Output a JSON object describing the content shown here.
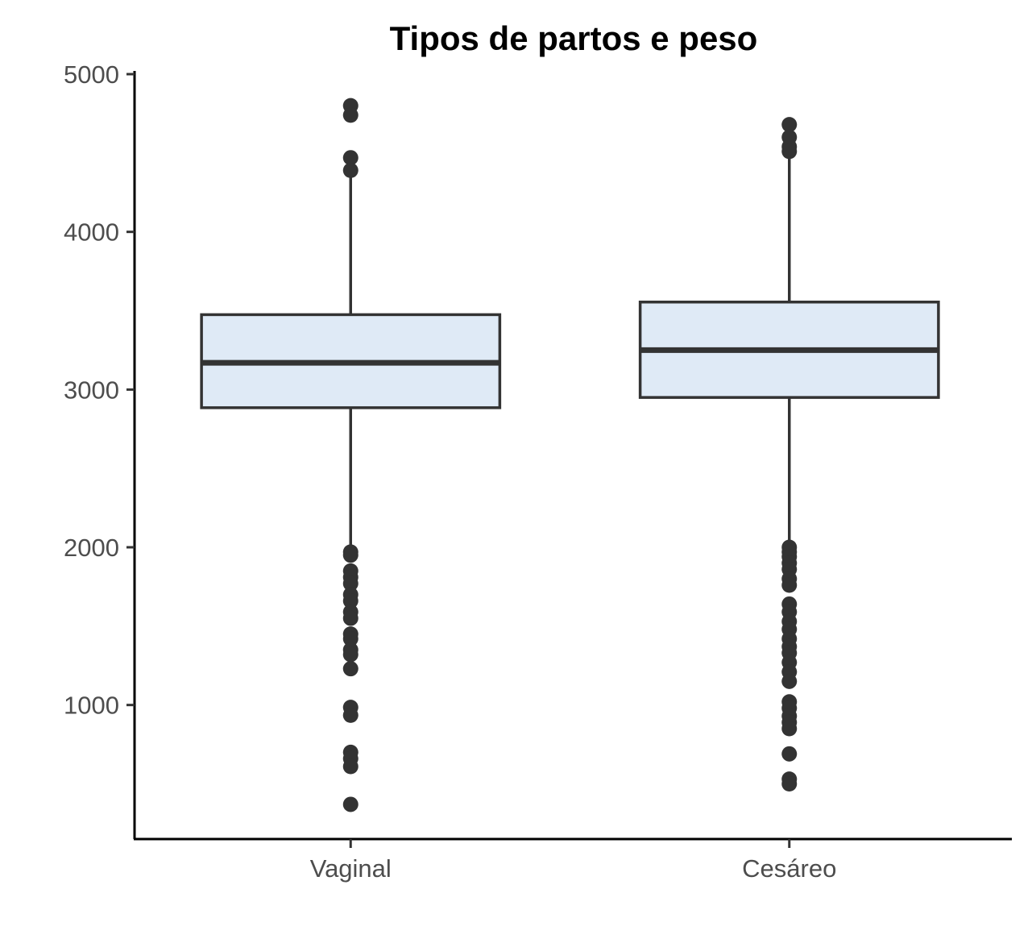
{
  "chart_data": {
    "type": "boxplot",
    "title": "Tipos de partos e peso",
    "xlabel": "",
    "ylabel": "",
    "categories": [
      "Vaginal",
      "Cesáreo"
    ],
    "ylim": [
      150,
      5000
    ],
    "yticks": [
      1000,
      2000,
      3000,
      4000,
      5000
    ],
    "grid": false,
    "box_fill": "#dfeaf6",
    "line_color": "#333333",
    "boxes": [
      {
        "name": "Vaginal",
        "whisker_low": 2000,
        "q1": 2885,
        "median": 3170,
        "q3": 3475,
        "whisker_high": 4390,
        "outliers": [
          4800,
          4740,
          4470,
          4390,
          1970,
          1950,
          1850,
          1810,
          1770,
          1700,
          1660,
          1590,
          1550,
          1450,
          1420,
          1350,
          1320,
          1230,
          985,
          935,
          700,
          660,
          610,
          370
        ]
      },
      {
        "name": "Cesáreo",
        "whisker_low": 2020,
        "q1": 2950,
        "median": 3250,
        "q3": 3555,
        "whisker_high": 4490,
        "outliers": [
          4680,
          4600,
          4540,
          4510,
          2000,
          1970,
          1940,
          1900,
          1860,
          1800,
          1760,
          1640,
          1590,
          1530,
          1480,
          1420,
          1370,
          1330,
          1270,
          1210,
          1150,
          1020,
          980,
          930,
          890,
          850,
          690,
          530,
          500
        ]
      }
    ]
  }
}
